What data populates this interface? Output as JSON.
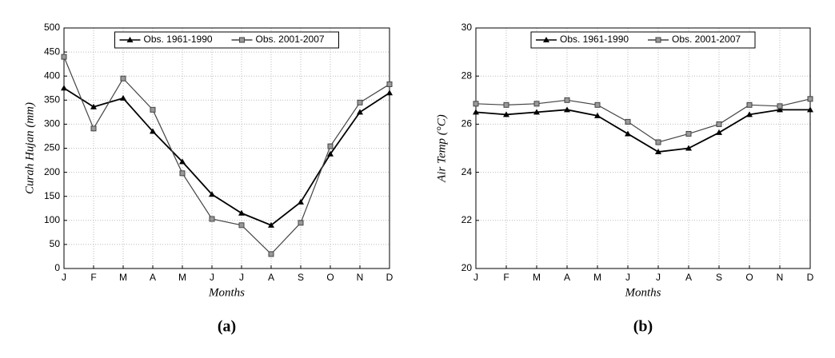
{
  "chart_data": [
    {
      "type": "line",
      "caption": "(a)",
      "x_label": "Months",
      "y_label": "Curah Hujan (mm)",
      "categories": [
        "J",
        "F",
        "M",
        "A",
        "M",
        "J",
        "J",
        "A",
        "S",
        "O",
        "N",
        "D"
      ],
      "ylim": [
        0,
        500
      ],
      "yticks": [
        0,
        50,
        100,
        150,
        200,
        250,
        300,
        350,
        400,
        450,
        500
      ],
      "grid": true,
      "legend": "top",
      "series": [
        {
          "name": "Obs. 1961-1990",
          "color": "#000000",
          "marker": "triangle",
          "values": [
            375,
            336,
            354,
            285,
            222,
            154,
            115,
            90,
            138,
            238,
            325,
            365
          ]
        },
        {
          "name": "Obs. 2001-2007",
          "color": "#444444",
          "marker": "square",
          "values": [
            440,
            291,
            395,
            330,
            198,
            103,
            90,
            30,
            95,
            254,
            345,
            383
          ]
        }
      ]
    },
    {
      "type": "line",
      "caption": "(b)",
      "x_label": "Months",
      "y_label": "Air Temp (°C)",
      "categories": [
        "J",
        "F",
        "M",
        "A",
        "M",
        "J",
        "J",
        "A",
        "S",
        "O",
        "N",
        "D"
      ],
      "ylim": [
        20,
        30
      ],
      "yticks": [
        20,
        22,
        24,
        26,
        28,
        30
      ],
      "grid": true,
      "legend": "top",
      "series": [
        {
          "name": "Obs. 1961-1990",
          "color": "#000000",
          "marker": "triangle",
          "values": [
            26.5,
            26.4,
            26.5,
            26.6,
            26.35,
            25.6,
            24.85,
            25.0,
            25.65,
            26.4,
            26.6,
            26.6
          ]
        },
        {
          "name": "Obs. 2001-2007",
          "color": "#444444",
          "marker": "square",
          "values": [
            26.85,
            26.8,
            26.85,
            27.0,
            26.8,
            26.1,
            25.25,
            25.6,
            26.0,
            26.8,
            26.75,
            27.05
          ]
        }
      ]
    }
  ]
}
